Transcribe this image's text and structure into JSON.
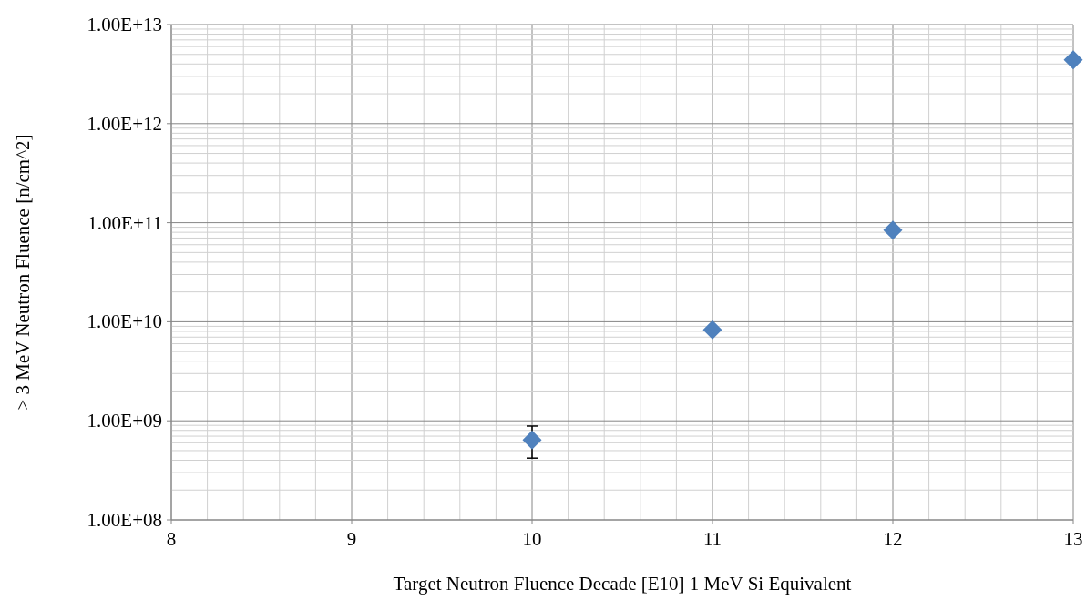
{
  "chart_data": {
    "type": "scatter",
    "xlabel": "Target Neutron Fluence Decade [E10] 1 MeV Si Equivalent",
    "ylabel": "> 3 MeV Neutron Fluence [n/cm^2]",
    "x": [
      10,
      11,
      12,
      13
    ],
    "series": [
      {
        "color": "#4f81bd",
        "values": [
          640000000.0,
          8300000000.0,
          84000000000.0,
          4400000000000.0
        ],
        "errors": [
          [
            420000000.0,
            885000000.0
          ],
          null,
          null,
          null
        ]
      }
    ],
    "xlim": [
      8,
      13
    ],
    "xticks": [
      8,
      9,
      10,
      11,
      12,
      13
    ],
    "ylim": [
      100000000.0,
      10000000000000.0
    ],
    "yticks": [
      {
        "value": 100000000.0,
        "label": "1.00E+08"
      },
      {
        "value": 1000000000.0,
        "label": "1.00E+09"
      },
      {
        "value": 10000000000.0,
        "label": "1.00E+10"
      },
      {
        "value": 100000000000.0,
        "label": "1.00E+11"
      },
      {
        "value": 1000000000000.0,
        "label": "1.00E+12"
      },
      {
        "value": 10000000000000.0,
        "label": "1.00E+13"
      }
    ],
    "log": "y",
    "grid": true,
    "marker": "diamond"
  }
}
